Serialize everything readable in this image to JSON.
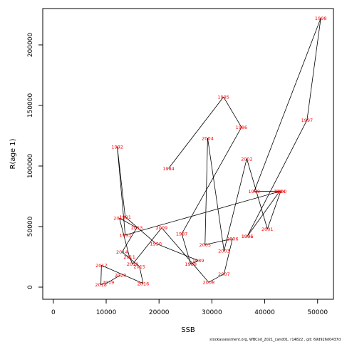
{
  "chart_data": {
    "type": "scatter",
    "xlabel": "SSB",
    "ylabel": "R(age 1)",
    "xlim": [
      -2000,
      53000
    ],
    "ylim": [
      -10000,
      230000
    ],
    "x_ticks": [
      0,
      10000,
      20000,
      30000,
      40000,
      50000
    ],
    "y_ticks": [
      0,
      50000,
      100000,
      150000,
      200000
    ],
    "grid": false,
    "connect_points": true,
    "line_color": "#000000",
    "label_color": "#ff0000",
    "points": [
      {
        "year": "1984",
        "x": 21800,
        "y": 98000
      },
      {
        "year": "1985",
        "x": 32200,
        "y": 157000
      },
      {
        "year": "1986",
        "x": 35600,
        "y": 132000
      },
      {
        "year": "1987",
        "x": 24300,
        "y": 44000
      },
      {
        "year": "1988",
        "x": 26000,
        "y": 19000
      },
      {
        "year": "1989",
        "x": 27400,
        "y": 22000
      },
      {
        "year": "1990",
        "x": 19400,
        "y": 36000
      },
      {
        "year": "1991",
        "x": 13600,
        "y": 58000
      },
      {
        "year": "1992",
        "x": 12100,
        "y": 116000
      },
      {
        "year": "1993",
        "x": 13600,
        "y": 43000
      },
      {
        "year": "1994",
        "x": 42800,
        "y": 79000
      },
      {
        "year": "1995",
        "x": 36700,
        "y": 42000
      },
      {
        "year": "1996",
        "x": 36700,
        "y": 42000
      },
      {
        "year": "1997",
        "x": 48000,
        "y": 138000
      },
      {
        "year": "1998",
        "x": 50600,
        "y": 222000
      },
      {
        "year": "1999",
        "x": 38000,
        "y": 79000
      },
      {
        "year": "2000",
        "x": 43000,
        "y": 79000
      },
      {
        "year": "2001",
        "x": 40500,
        "y": 48000
      },
      {
        "year": "2002",
        "x": 36600,
        "y": 106000
      },
      {
        "year": "2003",
        "x": 32300,
        "y": 30000
      },
      {
        "year": "2004",
        "x": 29200,
        "y": 123000
      },
      {
        "year": "2005",
        "x": 28700,
        "y": 35000
      },
      {
        "year": "2006",
        "x": 33900,
        "y": 40000
      },
      {
        "year": "2007",
        "x": 32300,
        "y": 11000
      },
      {
        "year": "2008",
        "x": 29400,
        "y": 4000
      },
      {
        "year": "2009",
        "x": 20500,
        "y": 49000
      },
      {
        "year": "2010",
        "x": 15000,
        "y": 19000
      },
      {
        "year": "2011",
        "x": 14400,
        "y": 25000
      },
      {
        "year": "2012",
        "x": 12500,
        "y": 57000
      },
      {
        "year": "2013",
        "x": 15800,
        "y": 49000
      },
      {
        "year": "2014",
        "x": 13000,
        "y": 29000
      },
      {
        "year": "2015",
        "x": 16300,
        "y": 17000
      },
      {
        "year": "2016",
        "x": 17000,
        "y": 3000
      },
      {
        "year": "2017",
        "x": 9100,
        "y": 18000
      },
      {
        "year": "2018",
        "x": 9000,
        "y": 2000
      },
      {
        "year": "2019",
        "x": 10400,
        "y": 4000
      },
      {
        "year": "2020",
        "x": 12700,
        "y": 10000
      }
    ],
    "path_order": [
      "1984",
      "1985",
      "1986",
      "1987",
      "1988",
      "1989",
      "1990",
      "1991",
      "1992",
      "1993",
      "1994",
      "1995",
      "1996",
      "1997",
      "1998",
      "1999",
      "2000",
      "2001",
      "2002",
      "2003",
      "2004",
      "2005",
      "2006",
      "2007",
      "2008",
      "2009",
      "2010",
      "2011",
      "2012",
      "2013",
      "2014",
      "2015",
      "2016",
      "2017",
      "2018",
      "2019",
      "2020"
    ]
  },
  "footer": "stockassessment.org, WBCod_2021_cand01, r14822 , git: 69d926d0437d"
}
